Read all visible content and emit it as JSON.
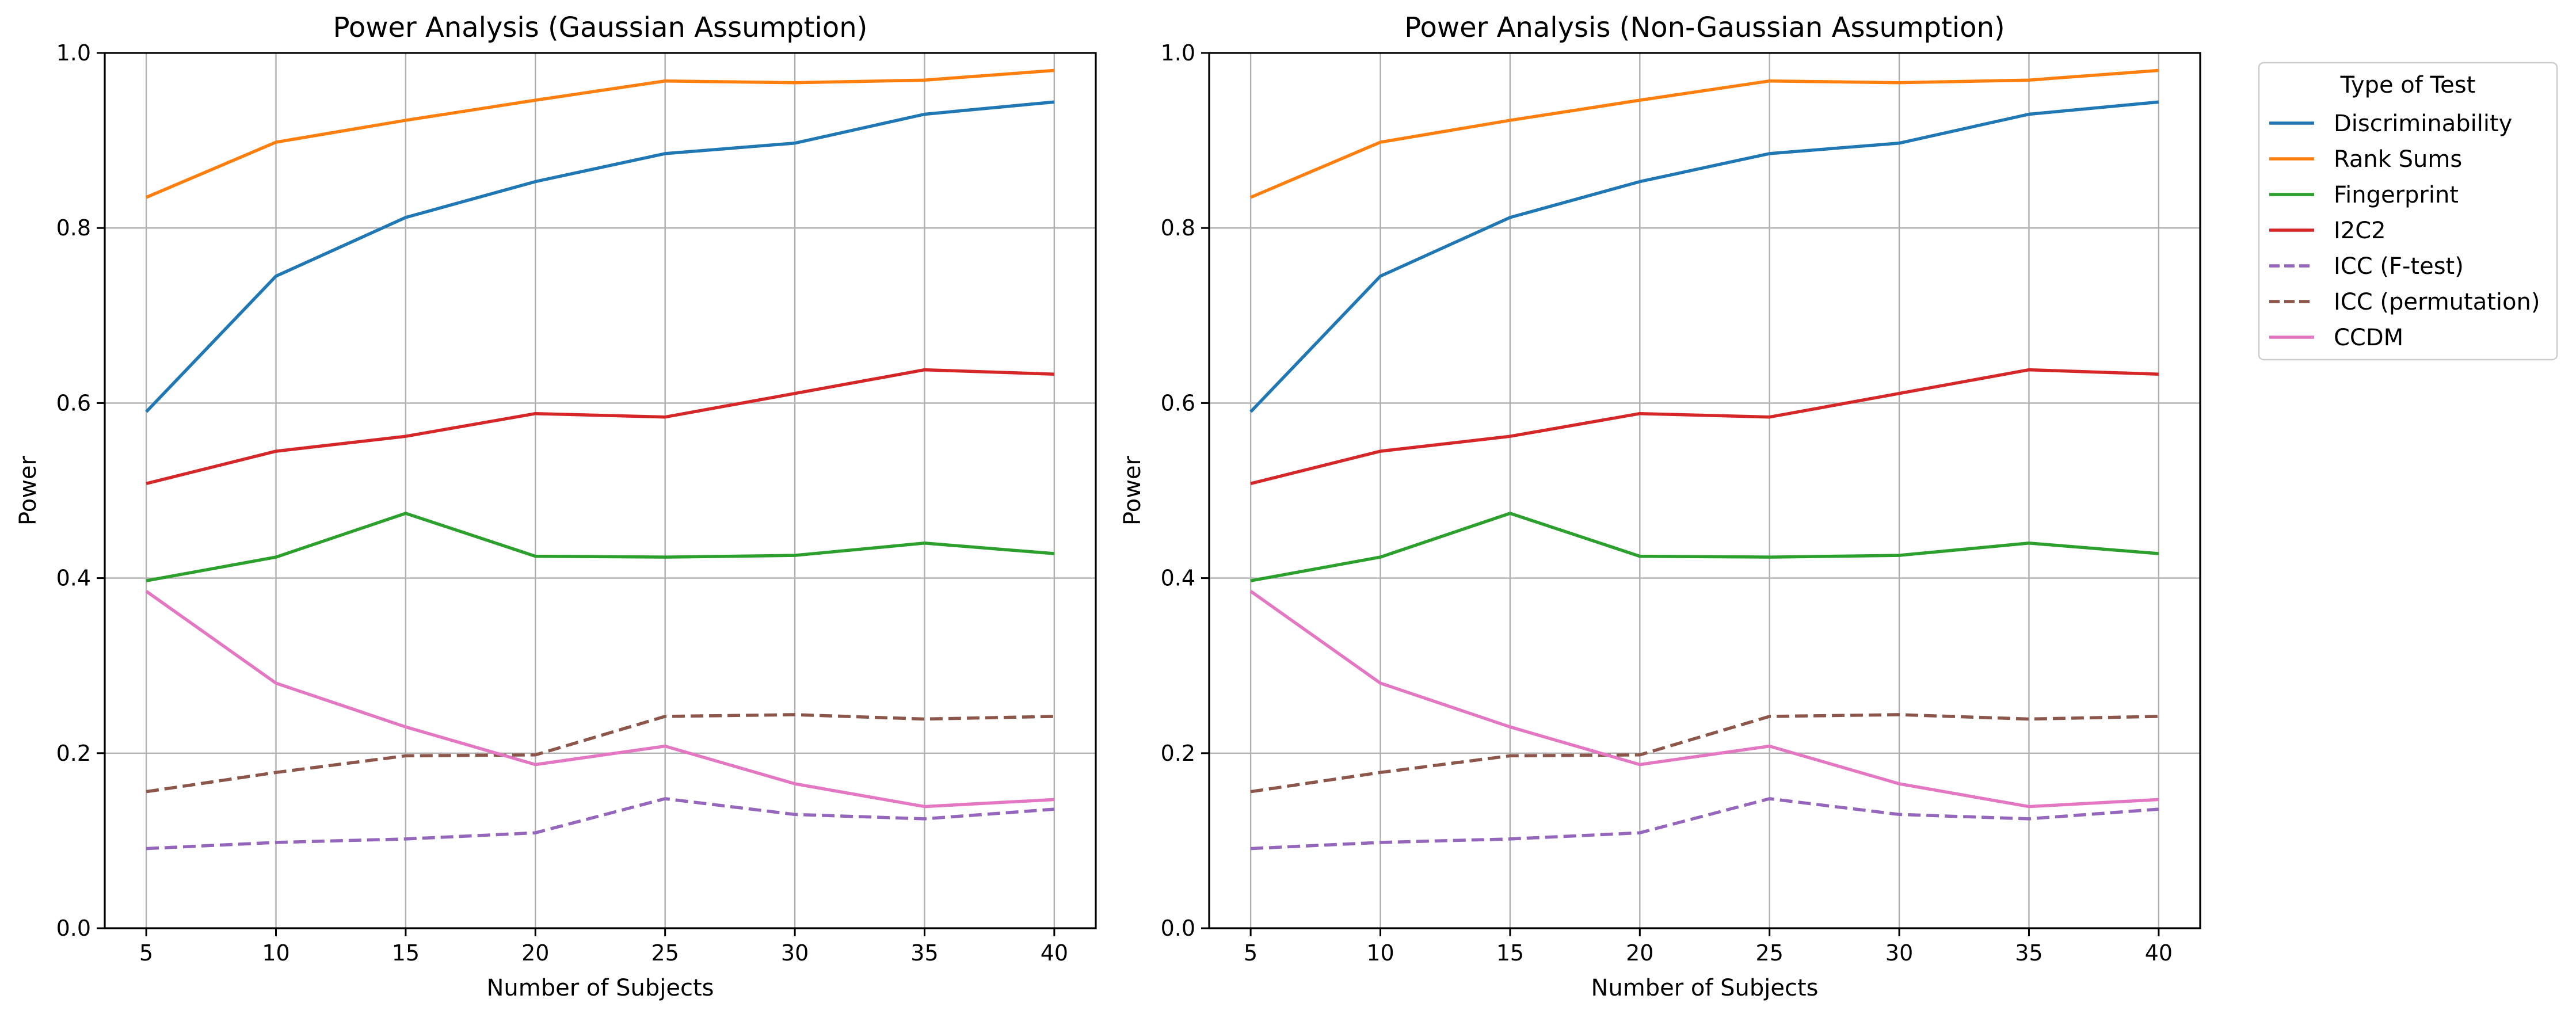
{
  "chart_data": [
    {
      "type": "line",
      "title": "Power Analysis (Gaussian Assumption)",
      "xlabel": "Number of Subjects",
      "ylabel": "Power",
      "x": [
        5,
        10,
        15,
        20,
        25,
        30,
        35,
        40
      ],
      "xticks": [
        "5",
        "10",
        "15",
        "20",
        "25",
        "30",
        "35",
        "40"
      ],
      "xlim": [
        3.4,
        41.6
      ],
      "ylim": [
        0,
        1
      ],
      "yticks": [
        "0.0",
        "0.2",
        "0.4",
        "0.6",
        "0.8",
        "1.0"
      ],
      "grid": true,
      "series": [
        {
          "name": "Discriminability",
          "color": "#1f77b4",
          "dash": "solid",
          "values": [
            0.59,
            0.745,
            0.812,
            0.853,
            0.885,
            0.897,
            0.93,
            0.944
          ]
        },
        {
          "name": "Rank Sums",
          "color": "#ff7f0e",
          "dash": "solid",
          "values": [
            0.835,
            0.898,
            0.923,
            0.946,
            0.968,
            0.966,
            0.969,
            0.98
          ]
        },
        {
          "name": "Fingerprint",
          "color": "#2ca02c",
          "dash": "solid",
          "values": [
            0.397,
            0.424,
            0.474,
            0.425,
            0.424,
            0.426,
            0.44,
            0.428
          ]
        },
        {
          "name": "I2C2",
          "color": "#d62728",
          "dash": "solid",
          "values": [
            0.508,
            0.545,
            0.562,
            0.588,
            0.584,
            0.611,
            0.638,
            0.633
          ]
        },
        {
          "name": "ICC (F-test)",
          "color": "#9467bd",
          "dash": "dashed",
          "values": [
            0.091,
            0.098,
            0.102,
            0.109,
            0.148,
            0.13,
            0.125,
            0.136
          ]
        },
        {
          "name": "ICC (permutation)",
          "color": "#8c564b",
          "dash": "dashed",
          "values": [
            0.156,
            0.178,
            0.197,
            0.198,
            0.242,
            0.244,
            0.239,
            0.242
          ]
        },
        {
          "name": "CCDM",
          "color": "#e377c2",
          "dash": "solid",
          "values": [
            0.385,
            0.28,
            0.23,
            0.187,
            0.208,
            0.165,
            0.139,
            0.147
          ]
        }
      ]
    },
    {
      "type": "line",
      "title": "Power Analysis (Non-Gaussian Assumption)",
      "xlabel": "Number of Subjects",
      "ylabel": "Power",
      "x": [
        5,
        10,
        15,
        20,
        25,
        30,
        35,
        40
      ],
      "xticks": [
        "5",
        "10",
        "15",
        "20",
        "25",
        "30",
        "35",
        "40"
      ],
      "xlim": [
        3.4,
        41.6
      ],
      "ylim": [
        0,
        1
      ],
      "yticks": [
        "0.0",
        "0.2",
        "0.4",
        "0.6",
        "0.8",
        "1.0"
      ],
      "grid": true,
      "series": [
        {
          "name": "Discriminability",
          "color": "#1f77b4",
          "dash": "solid",
          "values": [
            0.59,
            0.745,
            0.812,
            0.853,
            0.885,
            0.897,
            0.93,
            0.944
          ]
        },
        {
          "name": "Rank Sums",
          "color": "#ff7f0e",
          "dash": "solid",
          "values": [
            0.835,
            0.898,
            0.923,
            0.946,
            0.968,
            0.966,
            0.969,
            0.98
          ]
        },
        {
          "name": "Fingerprint",
          "color": "#2ca02c",
          "dash": "solid",
          "values": [
            0.397,
            0.424,
            0.474,
            0.425,
            0.424,
            0.426,
            0.44,
            0.428
          ]
        },
        {
          "name": "I2C2",
          "color": "#d62728",
          "dash": "solid",
          "values": [
            0.508,
            0.545,
            0.562,
            0.588,
            0.584,
            0.611,
            0.638,
            0.633
          ]
        },
        {
          "name": "ICC (F-test)",
          "color": "#9467bd",
          "dash": "dashed",
          "values": [
            0.091,
            0.098,
            0.102,
            0.109,
            0.148,
            0.13,
            0.125,
            0.136
          ]
        },
        {
          "name": "ICC (permutation)",
          "color": "#8c564b",
          "dash": "dashed",
          "values": [
            0.156,
            0.178,
            0.197,
            0.198,
            0.242,
            0.244,
            0.239,
            0.242
          ]
        },
        {
          "name": "CCDM",
          "color": "#e377c2",
          "dash": "solid",
          "values": [
            0.385,
            0.28,
            0.23,
            0.187,
            0.208,
            0.165,
            0.139,
            0.147
          ]
        }
      ]
    }
  ],
  "legend": {
    "title": "Type of Test",
    "placement": "outside-right-top"
  }
}
